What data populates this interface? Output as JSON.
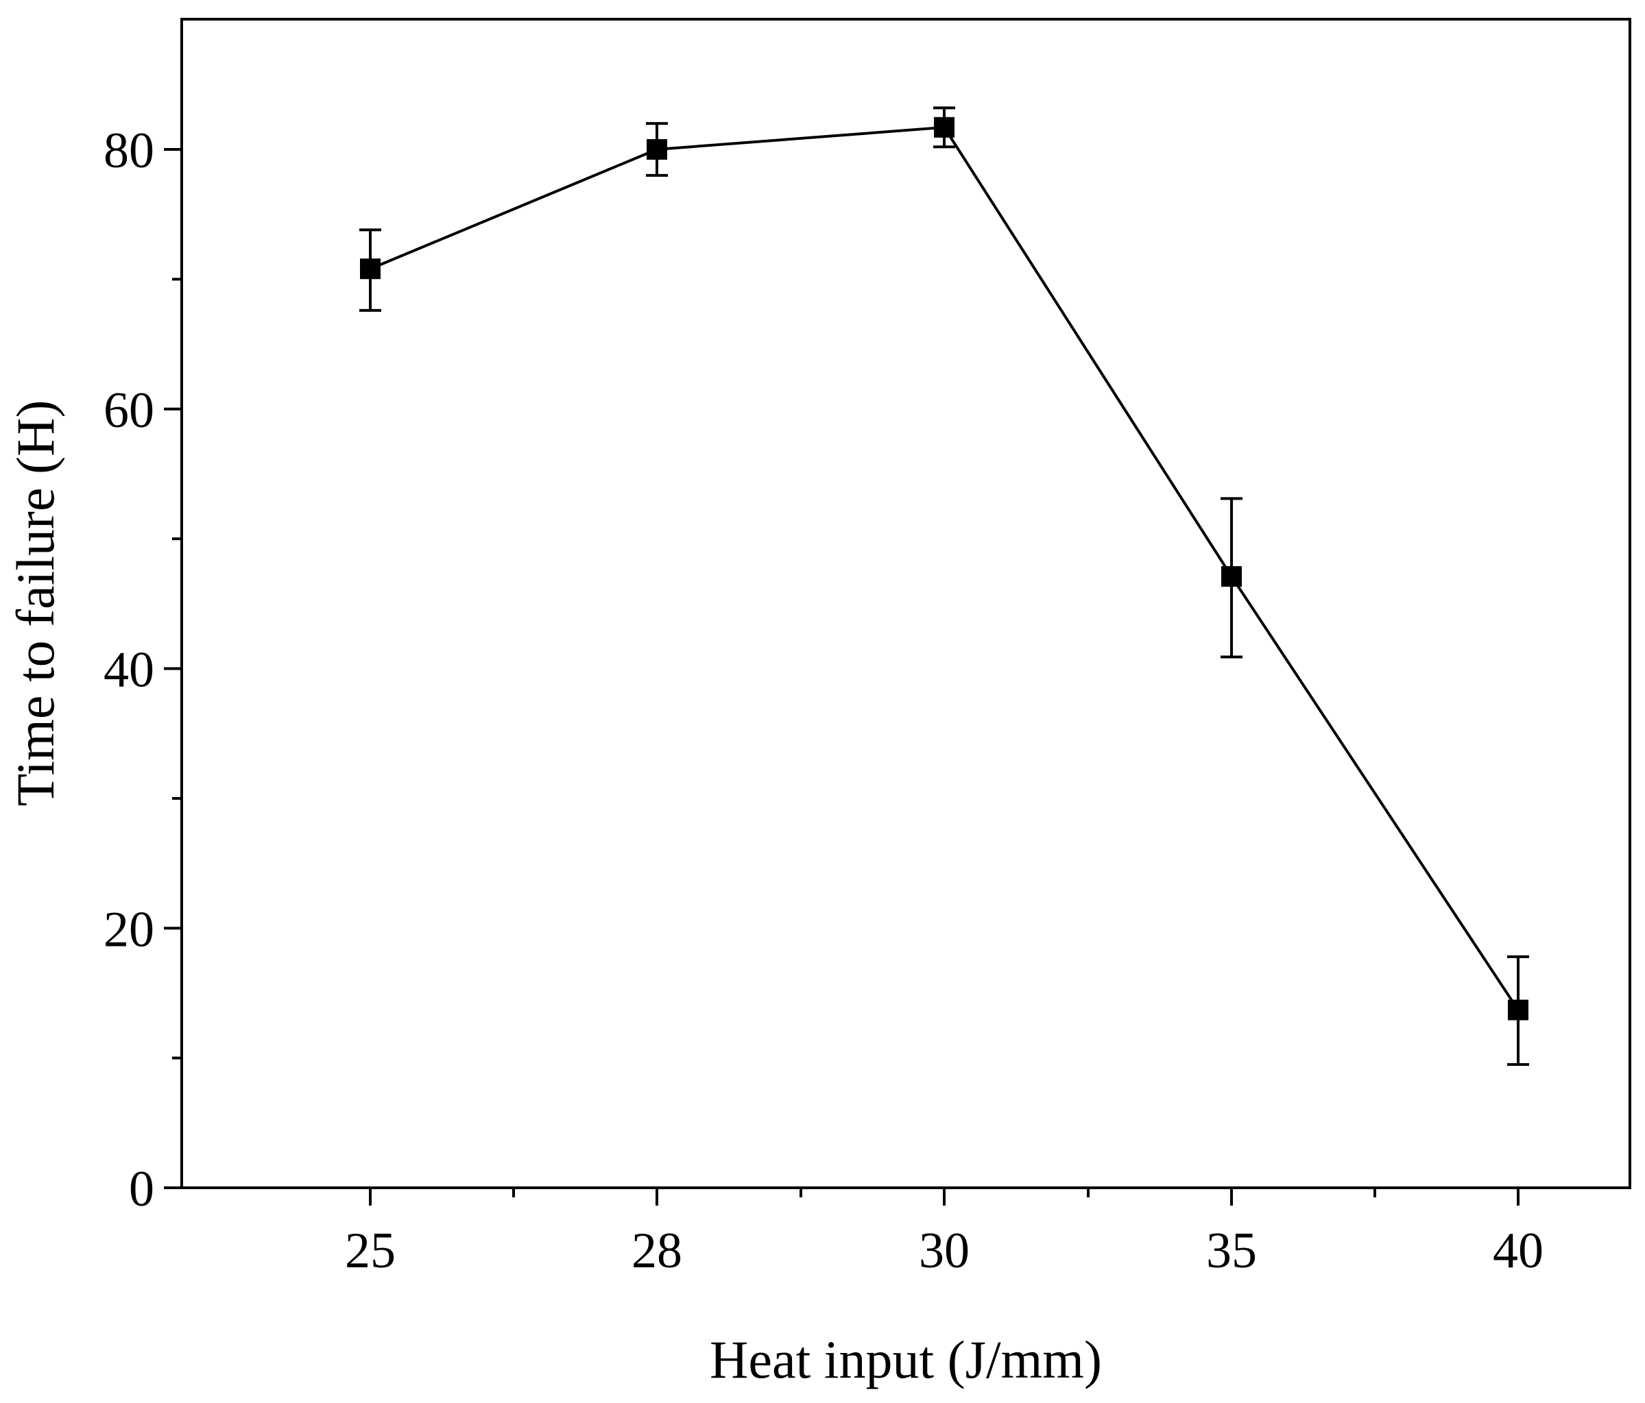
{
  "chart_data": {
    "type": "line",
    "title": "",
    "xlabel": "Heat input (J/mm)",
    "ylabel": "Time to failure (H)",
    "categories": [
      "25",
      "28",
      "30",
      "35",
      "40"
    ],
    "series": [
      {
        "name": "Time to failure",
        "values": [
          70.8,
          80.0,
          81.7,
          47.1,
          13.7
        ],
        "error_low": [
          67.6,
          78.0,
          80.2,
          40.9,
          9.5
        ],
        "error_high": [
          73.8,
          82.0,
          83.2,
          53.1,
          17.8
        ]
      }
    ],
    "ylim": [
      0,
      90
    ],
    "yticks": [
      "0",
      "20",
      "40",
      "60",
      "80"
    ],
    "grid": false,
    "legend": "none"
  },
  "colors": {
    "line": "#000000",
    "marker": "#000000",
    "background": "#ffffff"
  }
}
